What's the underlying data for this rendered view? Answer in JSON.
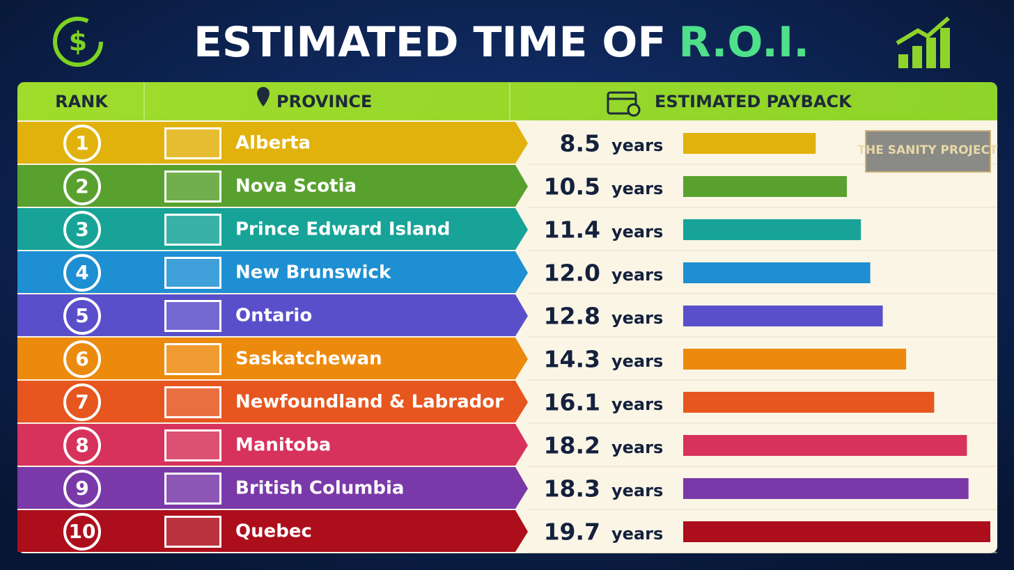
{
  "title": {
    "text": "ESTIMATED TIME OF",
    "highlight": "R.O.I."
  },
  "header": {
    "rank": "RANK",
    "province": "PROVINCE",
    "payback": "ESTIMATED PAYBACK"
  },
  "unit": "years",
  "watermark": "THE SANITY PROJECT",
  "rows": [
    {
      "rank": 1,
      "province": "Alberta",
      "payback": 8.5,
      "color": "#e2b20c"
    },
    {
      "rank": 2,
      "province": "Nova Scotia",
      "payback": 10.5,
      "color": "#58a12e"
    },
    {
      "rank": 3,
      "province": "Prince Edward Island",
      "payback": 11.4,
      "color": "#17a398"
    },
    {
      "rank": 4,
      "province": "New Brunswick",
      "payback": 12.0,
      "payback_label": "12.0",
      "color": "#1e8fd2"
    },
    {
      "rank": 5,
      "province": "Ontario",
      "payback": 12.8,
      "color": "#5a4fca"
    },
    {
      "rank": 6,
      "province": "Saskatchewan",
      "payback": 14.3,
      "color": "#ec8a0e"
    },
    {
      "rank": 7,
      "province": "Newfoundland & Labrador",
      "payback": 16.1,
      "color": "#e6561e"
    },
    {
      "rank": 8,
      "province": "Manitoba",
      "payback": 18.2,
      "color": "#d7325b"
    },
    {
      "rank": 9,
      "province": "British Columbia",
      "payback": 18.3,
      "color": "#7a39a8"
    },
    {
      "rank": 10,
      "province": "Quebec",
      "payback": 19.7,
      "color": "#ad0e1c"
    }
  ]
}
